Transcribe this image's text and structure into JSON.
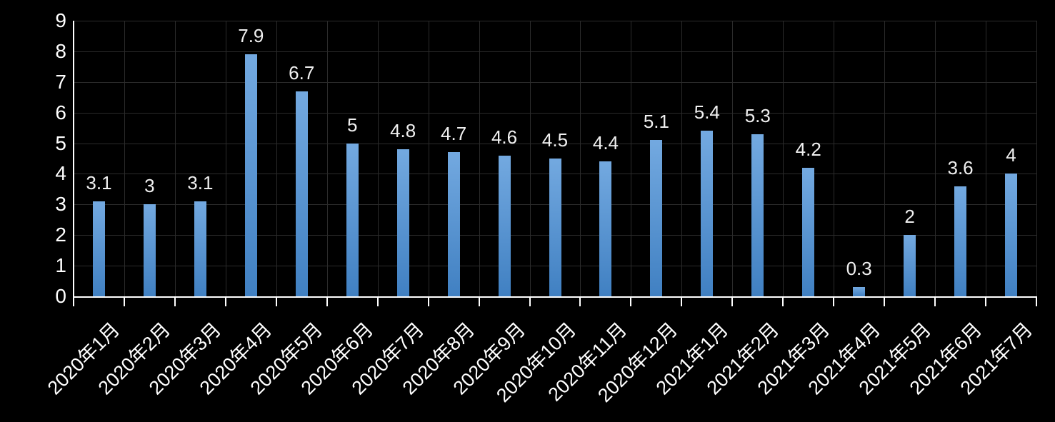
{
  "chart_data": {
    "type": "bar",
    "title": "",
    "categories": [
      "2020年1月",
      "2020年2月",
      "2020年3月",
      "2020年4月",
      "2020年5月",
      "2020年6月",
      "2020年7月",
      "2020年8月",
      "2020年9月",
      "2020年10月",
      "2020年11月",
      "2020年12月",
      "2021年1月",
      "2021年2月",
      "2021年3月",
      "2021年4月",
      "2021年5月",
      "2021年6月",
      "2021年7月"
    ],
    "values": [
      3.1,
      3,
      3.1,
      7.9,
      6.7,
      5,
      4.8,
      4.7,
      4.6,
      4.5,
      4.4,
      5.1,
      5.4,
      5.3,
      4.2,
      0.3,
      2,
      3.6,
      4
    ],
    "data_labels": [
      "3.1",
      "3",
      "3.1",
      "7.9",
      "6.7",
      "5",
      "4.8",
      "4.7",
      "4.6",
      "4.5",
      "4.4",
      "5.1",
      "5.4",
      "5.3",
      "4.2",
      "0.3",
      "2",
      "3.6",
      "4"
    ],
    "xlabel": "",
    "ylabel": "",
    "ylim": [
      0,
      9
    ],
    "yticks": [
      0,
      1,
      2,
      3,
      4,
      5,
      6,
      7,
      8,
      9
    ],
    "grid": "horizontal-and-vertical",
    "legend_position": "none",
    "colors": {
      "background": "#000000",
      "bar_gradient_top": "#73A9E0",
      "bar_gradient_bottom": "#4080C2",
      "gridline": "#2B2B2B",
      "axis_line": "#FFFFFF",
      "axis_text": "#FFFFFF",
      "data_label_text": "#F0F0F0"
    }
  }
}
